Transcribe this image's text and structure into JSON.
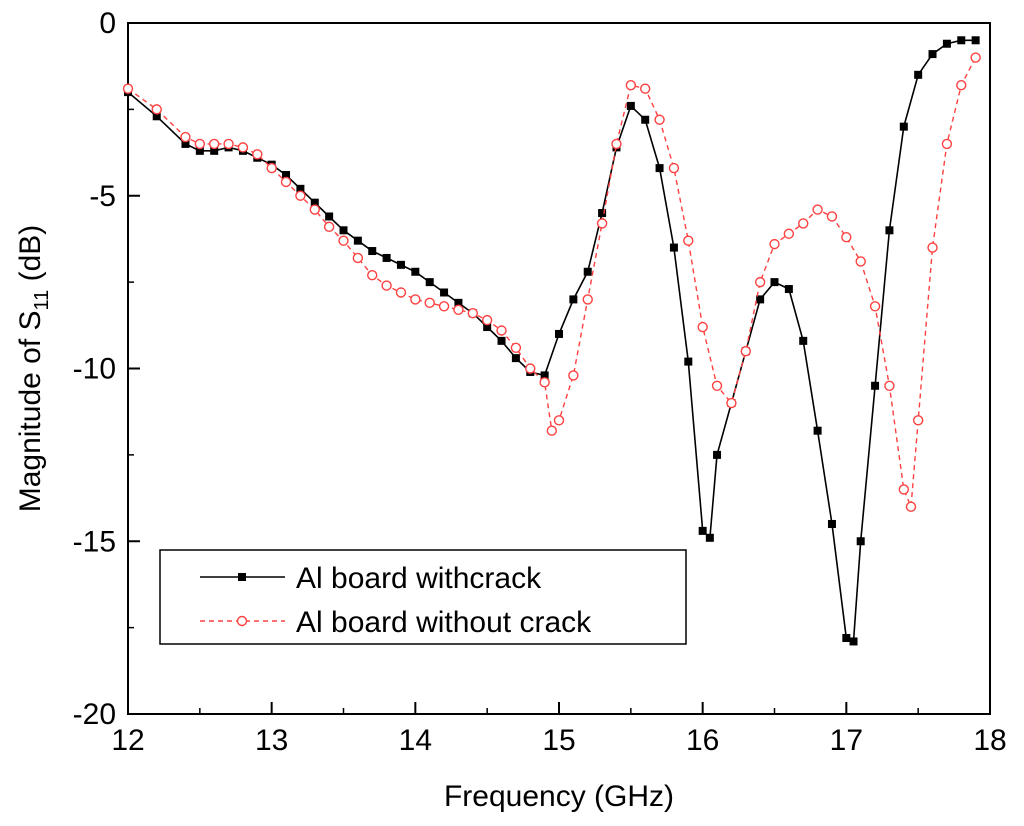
{
  "chart_data": {
    "type": "line",
    "xlabel": "Frequency (GHz)",
    "ylabel_main": "Magnitude of S",
    "ylabel_sub": "11",
    "ylabel_unit": " (dB)",
    "xlim": [
      12,
      18
    ],
    "ylim": [
      -20,
      0
    ],
    "xticks": [
      "12",
      "13",
      "14",
      "15",
      "16",
      "17",
      "18"
    ],
    "yticks": [
      "0",
      "-5",
      "-10",
      "-15",
      "-20"
    ],
    "grid": false,
    "legend_position": "bottom-left",
    "series": [
      {
        "name": "Al board withcrack",
        "color": "#000000",
        "marker": "square-filled",
        "line": "solid",
        "x": [
          12.0,
          12.2,
          12.4,
          12.5,
          12.6,
          12.7,
          12.8,
          12.9,
          13.0,
          13.1,
          13.2,
          13.3,
          13.4,
          13.5,
          13.6,
          13.7,
          13.8,
          13.9,
          14.0,
          14.1,
          14.2,
          14.3,
          14.4,
          14.5,
          14.6,
          14.7,
          14.8,
          14.9,
          15.0,
          15.1,
          15.2,
          15.3,
          15.4,
          15.5,
          15.6,
          15.7,
          15.8,
          15.9,
          16.0,
          16.05,
          16.1,
          16.2,
          16.3,
          16.4,
          16.5,
          16.6,
          16.7,
          16.8,
          16.9,
          17.0,
          17.05,
          17.1,
          17.2,
          17.3,
          17.4,
          17.5,
          17.6,
          17.7,
          17.8,
          17.9
        ],
        "y": [
          -2.0,
          -2.7,
          -3.5,
          -3.7,
          -3.7,
          -3.6,
          -3.7,
          -3.9,
          -4.1,
          -4.4,
          -4.8,
          -5.2,
          -5.6,
          -6.0,
          -6.3,
          -6.6,
          -6.8,
          -7.0,
          -7.2,
          -7.5,
          -7.8,
          -8.1,
          -8.4,
          -8.8,
          -9.2,
          -9.7,
          -10.1,
          -10.2,
          -9.0,
          -8.0,
          -7.2,
          -5.5,
          -3.6,
          -2.4,
          -2.8,
          -4.2,
          -6.5,
          -9.8,
          -14.7,
          -14.9,
          -12.5,
          -11.0,
          -9.5,
          -8.0,
          -7.5,
          -7.7,
          -9.2,
          -11.8,
          -14.5,
          -17.8,
          -17.9,
          -15.0,
          -10.5,
          -6.0,
          -3.0,
          -1.5,
          -0.9,
          -0.6,
          -0.5,
          -0.5
        ]
      },
      {
        "name": "Al board without crack",
        "color": "#ff4040",
        "marker": "circle-open",
        "line": "dashed",
        "x": [
          12.0,
          12.2,
          12.4,
          12.5,
          12.6,
          12.7,
          12.8,
          12.9,
          13.0,
          13.1,
          13.2,
          13.3,
          13.4,
          13.5,
          13.6,
          13.7,
          13.8,
          13.9,
          14.0,
          14.1,
          14.2,
          14.3,
          14.4,
          14.5,
          14.6,
          14.7,
          14.8,
          14.9,
          14.95,
          15.0,
          15.1,
          15.2,
          15.3,
          15.4,
          15.5,
          15.6,
          15.7,
          15.8,
          15.9,
          16.0,
          16.1,
          16.2,
          16.3,
          16.4,
          16.5,
          16.6,
          16.7,
          16.8,
          16.9,
          17.0,
          17.1,
          17.2,
          17.3,
          17.4,
          17.45,
          17.5,
          17.6,
          17.7,
          17.8,
          17.9
        ],
        "y": [
          -1.9,
          -2.5,
          -3.3,
          -3.5,
          -3.5,
          -3.5,
          -3.6,
          -3.8,
          -4.2,
          -4.6,
          -5.0,
          -5.4,
          -5.9,
          -6.3,
          -6.8,
          -7.3,
          -7.6,
          -7.8,
          -8.0,
          -8.1,
          -8.2,
          -8.3,
          -8.4,
          -8.6,
          -8.9,
          -9.4,
          -10.0,
          -10.4,
          -11.8,
          -11.5,
          -10.2,
          -8.0,
          -5.8,
          -3.5,
          -1.8,
          -1.9,
          -2.8,
          -4.2,
          -6.3,
          -8.8,
          -10.5,
          -11.0,
          -9.5,
          -7.5,
          -6.4,
          -6.1,
          -5.8,
          -5.4,
          -5.6,
          -6.2,
          -6.9,
          -8.2,
          -10.5,
          -13.5,
          -14.0,
          -11.5,
          -6.5,
          -3.5,
          -1.8,
          -1.0
        ]
      }
    ]
  }
}
